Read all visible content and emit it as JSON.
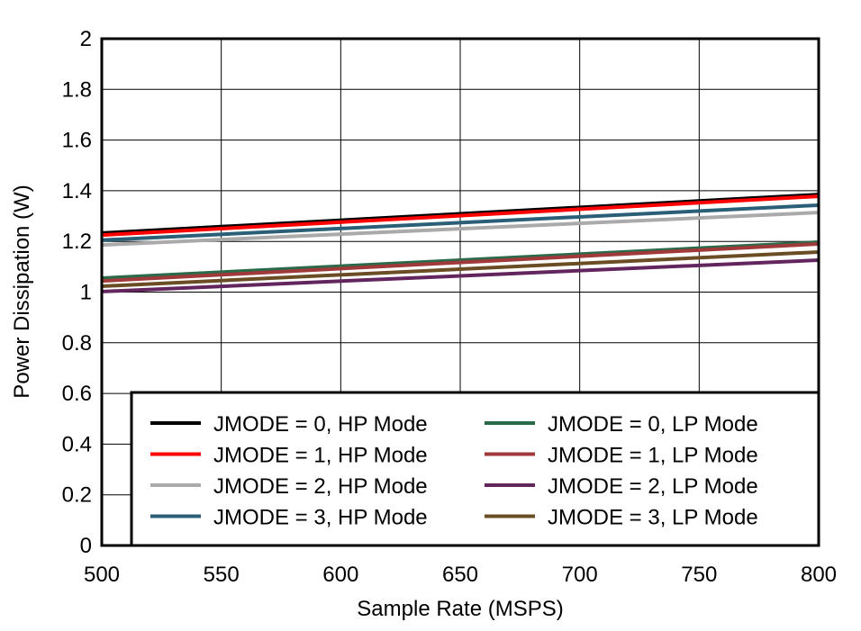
{
  "chart_data": {
    "type": "line",
    "title": "",
    "xlabel": "Sample Rate (MSPS)",
    "ylabel": "Power Dissipation (W)",
    "xlim": [
      500,
      800
    ],
    "ylim": [
      0,
      2
    ],
    "xticks": [
      "500",
      "550",
      "600",
      "650",
      "700",
      "750",
      "800"
    ],
    "yticks": [
      "0",
      "0.2",
      "0.4",
      "0.6",
      "0.8",
      "1",
      "1.2",
      "1.4",
      "1.6",
      "1.8",
      "2"
    ],
    "grid": true,
    "legend_placement": "bottom-right",
    "x": [
      500,
      800
    ],
    "series": [
      {
        "name": "JMODE = 0, HP Mode",
        "color": "#000000",
        "values": [
          1.233,
          1.385
        ]
      },
      {
        "name": "JMODE = 1, HP Mode",
        "color": "#ff0000",
        "values": [
          1.225,
          1.378
        ]
      },
      {
        "name": "JMODE = 2, HP Mode",
        "color": "#aaaaaa",
        "values": [
          1.186,
          1.314
        ]
      },
      {
        "name": "JMODE = 3, HP Mode",
        "color": "#2a5f77",
        "values": [
          1.205,
          1.343
        ]
      },
      {
        "name": "JMODE = 0, LP Mode",
        "color": "#2a6a4a",
        "values": [
          1.055,
          1.197
        ]
      },
      {
        "name": "JMODE = 1, LP Mode",
        "color": "#a03a3a",
        "values": [
          1.044,
          1.19
        ]
      },
      {
        "name": "JMODE = 2, LP Mode",
        "color": "#63255e",
        "values": [
          1.002,
          1.126
        ]
      },
      {
        "name": "JMODE = 3, LP Mode",
        "color": "#6b4d25",
        "values": [
          1.023,
          1.158
        ]
      }
    ]
  }
}
